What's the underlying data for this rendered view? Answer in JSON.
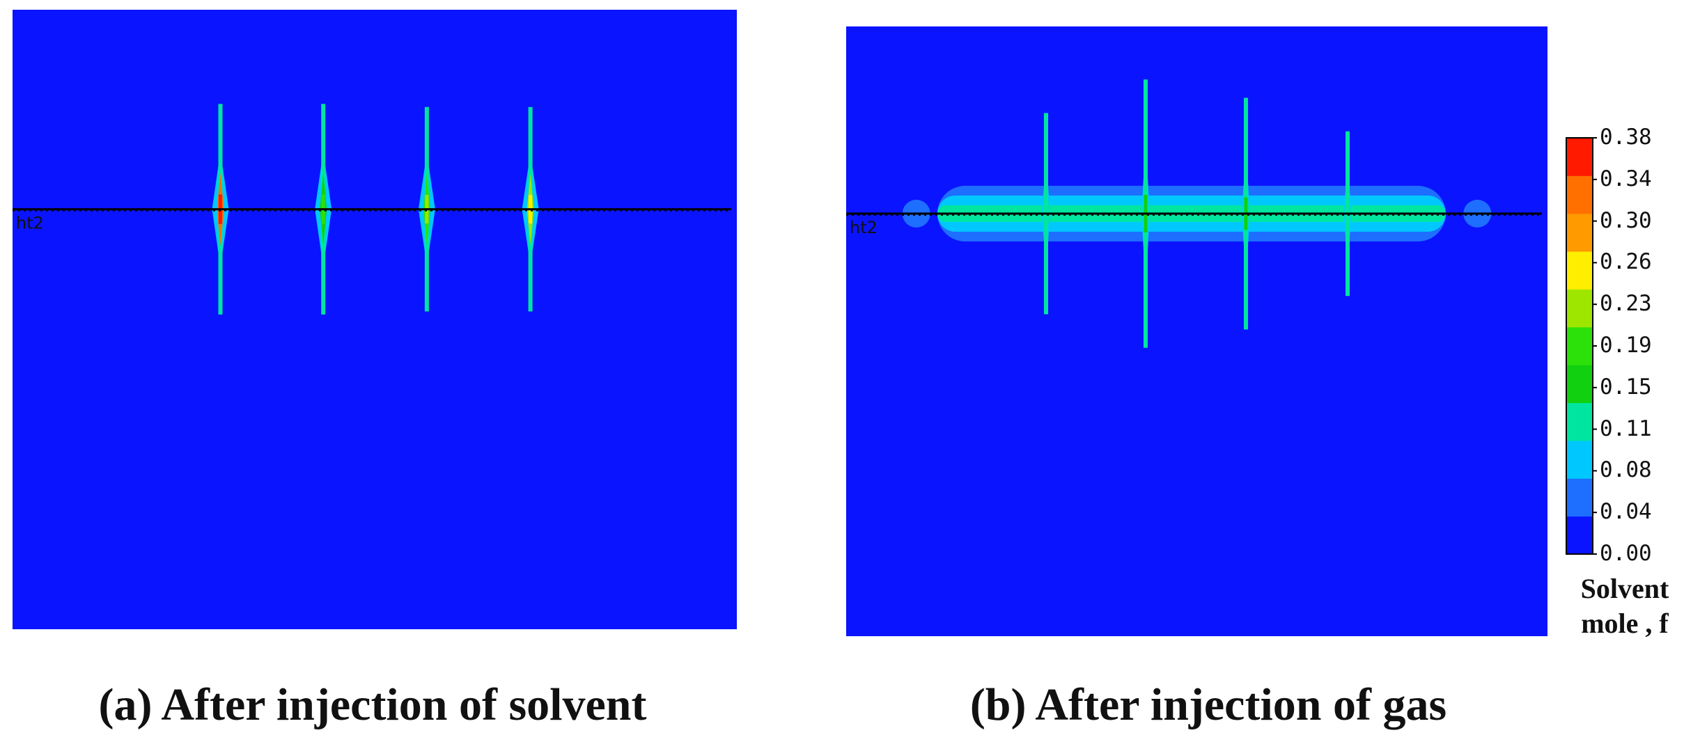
{
  "colors": {
    "background": "#0a14ff",
    "well_line": "#000000",
    "bands": [
      "#0a14ff",
      "#1e6eff",
      "#00c8ff",
      "#00e6a0",
      "#10d010",
      "#2ce00a",
      "#9ee600",
      "#ffee00",
      "#ff9a00",
      "#ff7000",
      "#ff1a00"
    ]
  },
  "chart_data": [
    {
      "type": "heatmap",
      "title": "(a) After injection of solvent",
      "well_label": "ht2",
      "fractures": [
        {
          "x": 0.287,
          "half_length": 0.17,
          "peak_band": 10
        },
        {
          "x": 0.429,
          "half_length": 0.17,
          "peak_band": 5
        },
        {
          "x": 0.572,
          "half_length": 0.165,
          "peak_band": 6
        },
        {
          "x": 0.715,
          "half_length": 0.165,
          "peak_band": 7
        }
      ]
    },
    {
      "type": "heatmap",
      "title": "(b) After injection of gas",
      "well_label": "ht2",
      "fractures": [
        {
          "x": 0.285,
          "half_length": 0.165,
          "peak_band": 3
        },
        {
          "x": 0.427,
          "half_length": 0.22,
          "peak_band": 4
        },
        {
          "x": 0.57,
          "half_length": 0.19,
          "peak_band": 4
        },
        {
          "x": 0.715,
          "half_length": 0.135,
          "peak_band": 3
        }
      ]
    }
  ],
  "colorbar": {
    "ticks": [
      "0.00",
      "0.04",
      "0.08",
      "0.11",
      "0.15",
      "0.19",
      "0.23",
      "0.26",
      "0.30",
      "0.34",
      "0.38"
    ],
    "title_line1": "Solvent",
    "title_line2": "mole , f"
  }
}
